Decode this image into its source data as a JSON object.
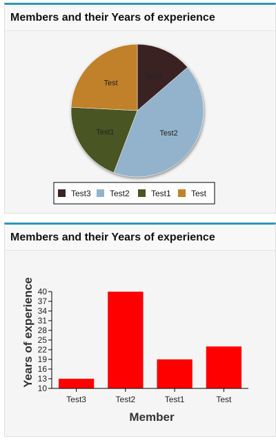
{
  "panels": [
    {
      "title": "Members and their Years of experience"
    },
    {
      "title": "Members and their Years of experience"
    }
  ],
  "colors": {
    "accent": "#2d96b6",
    "bar": "#ff0000"
  },
  "chart_data": [
    {
      "type": "pie",
      "categories": [
        "Test3",
        "Test2",
        "Test1",
        "Test"
      ],
      "values": [
        13,
        40,
        19,
        23
      ],
      "colors": [
        "#3a2424",
        "#93b3cc",
        "#4a5524",
        "#c0812a"
      ],
      "legend": {
        "position": "bottom",
        "entries": [
          "Test3",
          "Test2",
          "Test1",
          "Test"
        ]
      }
    },
    {
      "type": "bar",
      "categories": [
        "Test3",
        "Test2",
        "Test1",
        "Test"
      ],
      "values": [
        13,
        40,
        19,
        23
      ],
      "xlabel": "Member",
      "ylabel": "Years of experience",
      "ylim": [
        10,
        40
      ],
      "yticks": [
        10,
        13,
        16,
        19,
        22,
        25,
        28,
        31,
        34,
        37,
        40
      ],
      "grid": false,
      "color": "#ff0000"
    }
  ]
}
